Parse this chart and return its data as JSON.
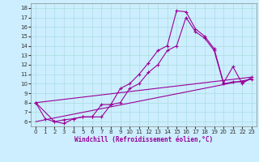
{
  "title": "",
  "xlabel": "Windchill (Refroidissement éolien,°C)",
  "background_color": "#cceeff",
  "grid_color": "#aadddd",
  "line_color": "#990099",
  "xlim": [
    -0.5,
    23.5
  ],
  "ylim": [
    5.5,
    18.5
  ],
  "yticks": [
    6,
    7,
    8,
    9,
    10,
    11,
    12,
    13,
    14,
    15,
    16,
    17,
    18
  ],
  "xticks": [
    0,
    1,
    2,
    3,
    4,
    5,
    6,
    7,
    8,
    9,
    10,
    11,
    12,
    13,
    14,
    15,
    16,
    17,
    18,
    19,
    20,
    21,
    22,
    23
  ],
  "series_with_markers": [
    {
      "x": [
        0,
        1,
        2,
        3,
        4,
        5,
        6,
        7,
        8,
        9,
        10,
        11,
        12,
        13,
        14,
        15,
        16,
        17,
        18,
        19,
        20,
        21,
        22,
        23
      ],
      "y": [
        8.0,
        6.3,
        6.0,
        5.8,
        6.3,
        6.5,
        6.5,
        7.8,
        7.8,
        9.5,
        10.0,
        11.0,
        12.2,
        13.5,
        14.0,
        17.7,
        17.6,
        15.8,
        15.0,
        13.7,
        10.1,
        11.8,
        10.0,
        10.7
      ]
    },
    {
      "x": [
        0,
        2,
        3,
        4,
        5,
        6,
        7,
        8,
        9,
        10,
        11,
        12,
        13,
        14,
        15,
        16,
        17,
        18,
        19,
        20,
        21,
        22,
        23
      ],
      "y": [
        8.0,
        6.0,
        6.2,
        6.3,
        6.5,
        6.5,
        6.5,
        7.8,
        8.0,
        9.5,
        10.0,
        11.2,
        12.0,
        13.5,
        14.0,
        17.0,
        15.5,
        14.8,
        13.5,
        10.0,
        10.2,
        10.2,
        10.5
      ]
    }
  ],
  "series_straight": [
    {
      "x": [
        0,
        23
      ],
      "y": [
        8.0,
        10.7
      ]
    },
    {
      "x": [
        0,
        23
      ],
      "y": [
        6.0,
        10.5
      ]
    }
  ]
}
